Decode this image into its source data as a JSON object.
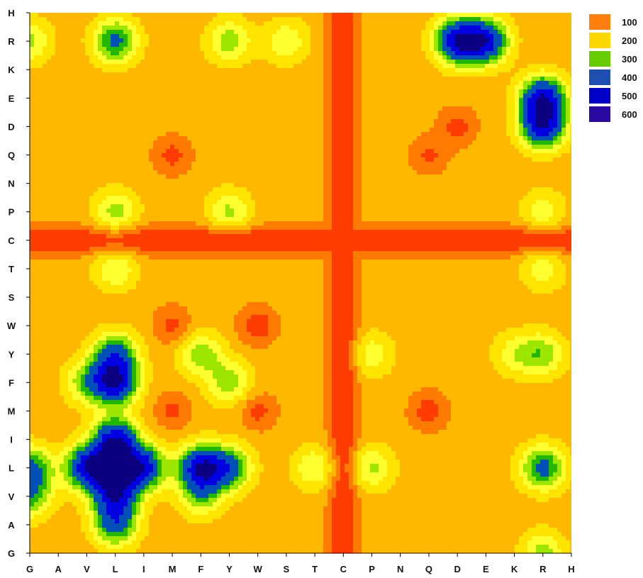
{
  "chart_data": {
    "type": "heatmap",
    "style": "filled-contour",
    "x_categories": [
      "G",
      "A",
      "V",
      "L",
      "I",
      "M",
      "F",
      "Y",
      "W",
      "S",
      "T",
      "C",
      "P",
      "N",
      "Q",
      "D",
      "E",
      "K",
      "R",
      "H"
    ],
    "y_categories_bottom_to_top": [
      "G",
      "A",
      "V",
      "L",
      "I",
      "M",
      "F",
      "Y",
      "W",
      "S",
      "T",
      "C",
      "P",
      "N",
      "Q",
      "D",
      "E",
      "K",
      "R",
      "H"
    ],
    "legend": {
      "placement": "top-right",
      "levels": [
        {
          "label": "100",
          "color": "#ff7f0e"
        },
        {
          "label": "200",
          "color": "#ffd700"
        },
        {
          "label": "300",
          "color": "#66cc00"
        },
        {
          "label": "400",
          "color": "#1e4fb0"
        },
        {
          "label": "500",
          "color": "#0000c8"
        },
        {
          "label": "600",
          "color": "#2a0aa0"
        }
      ]
    },
    "color_ramp": [
      {
        "v": 0,
        "color": "#ff3c00"
      },
      {
        "v": 100,
        "color": "#ff7a00"
      },
      {
        "v": 150,
        "color": "#ffb800"
      },
      {
        "v": 200,
        "color": "#ffe400"
      },
      {
        "v": 250,
        "color": "#ffff30"
      },
      {
        "v": 300,
        "color": "#9de600"
      },
      {
        "v": 350,
        "color": "#22b800"
      },
      {
        "v": 400,
        "color": "#0050b8"
      },
      {
        "v": 500,
        "color": "#0000e0"
      },
      {
        "v": 600,
        "color": "#0a0080"
      }
    ],
    "background_value": 170,
    "low_value_lines": {
      "column": "C",
      "row": "C",
      "value": 40
    },
    "peaks": [
      {
        "x": "L",
        "y": "L",
        "value": 580
      },
      {
        "x": "V",
        "y": "L",
        "value": 520
      },
      {
        "x": "I",
        "y": "L",
        "value": 500
      },
      {
        "x": "L",
        "y": "V",
        "value": 480
      },
      {
        "x": "L",
        "y": "I",
        "value": 520
      },
      {
        "x": "L",
        "y": "A",
        "value": 420
      },
      {
        "x": "G",
        "y": "L",
        "value": 420
      },
      {
        "x": "G",
        "y": "V",
        "value": 360
      },
      {
        "x": "L",
        "y": "F",
        "value": 560
      },
      {
        "x": "V",
        "y": "F",
        "value": 330
      },
      {
        "x": "L",
        "y": "Y",
        "value": 430
      },
      {
        "x": "F",
        "y": "L",
        "value": 560
      },
      {
        "x": "Y",
        "y": "L",
        "value": 420
      },
      {
        "x": "F",
        "y": "V",
        "value": 320
      },
      {
        "x": "F",
        "y": "Y",
        "value": 330
      },
      {
        "x": "Y",
        "y": "F",
        "value": 330
      },
      {
        "x": "D",
        "y": "R",
        "value": 560
      },
      {
        "x": "E",
        "y": "R",
        "value": 540
      },
      {
        "x": "R",
        "y": "E",
        "value": 560
      },
      {
        "x": "R",
        "y": "D",
        "value": 540
      },
      {
        "x": "R",
        "y": "L",
        "value": 430
      },
      {
        "x": "R",
        "y": "Y",
        "value": 330
      },
      {
        "x": "R",
        "y": "G",
        "value": 320
      },
      {
        "x": "L",
        "y": "R",
        "value": 420
      },
      {
        "x": "Y",
        "y": "R",
        "value": 330
      },
      {
        "x": "L",
        "y": "P",
        "value": 320
      },
      {
        "x": "Y",
        "y": "P",
        "value": 310
      },
      {
        "x": "L",
        "y": "T",
        "value": 300
      },
      {
        "x": "P",
        "y": "L",
        "value": 310
      },
      {
        "x": "T",
        "y": "L",
        "value": 300
      },
      {
        "x": "G",
        "y": "R",
        "value": 310
      },
      {
        "x": "S",
        "y": "R",
        "value": 290
      },
      {
        "x": "R",
        "y": "T",
        "value": 280
      },
      {
        "x": "R",
        "y": "P",
        "value": 280
      },
      {
        "x": "P",
        "y": "Y",
        "value": 280
      },
      {
        "x": "K",
        "y": "Y",
        "value": 270
      }
    ],
    "troughs": [
      {
        "x": "W",
        "y": "W",
        "value": 60
      },
      {
        "x": "D",
        "y": "D",
        "value": 80
      },
      {
        "x": "Q",
        "y": "Q",
        "value": 90
      },
      {
        "x": "M",
        "y": "Q",
        "value": 80
      },
      {
        "x": "Q",
        "y": "M",
        "value": 70
      },
      {
        "x": "W",
        "y": "M",
        "value": 80
      },
      {
        "x": "M",
        "y": "W",
        "value": 80
      },
      {
        "x": "M",
        "y": "M",
        "value": 90
      }
    ],
    "title": "",
    "xlabel": "",
    "ylabel": ""
  }
}
